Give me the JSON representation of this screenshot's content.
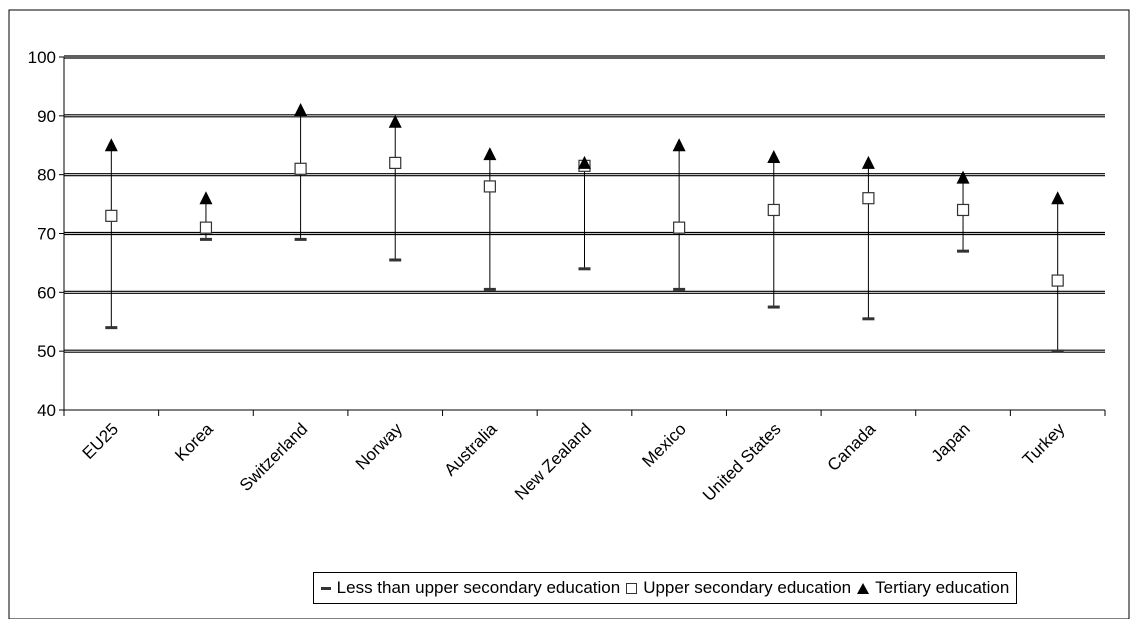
{
  "chart_data": {
    "type": "scatter",
    "categories": [
      "EU25",
      "Korea",
      "Switzerland",
      "Norway",
      "Australia",
      "New Zealand",
      "Mexico",
      "United States",
      "Canada",
      "Japan",
      "Turkey"
    ],
    "series": [
      {
        "name": "Less than upper secondary education",
        "marker": "dash",
        "values": [
          54,
          69,
          69,
          65.5,
          60.5,
          64,
          60.5,
          57.5,
          55.5,
          67,
          50
        ]
      },
      {
        "name": "Upper secondary education",
        "marker": "square",
        "values": [
          73,
          71,
          81,
          82,
          78,
          81.5,
          71,
          74,
          76,
          74,
          62
        ]
      },
      {
        "name": "Tertiary education",
        "marker": "triangle",
        "values": [
          85,
          76,
          91,
          89,
          83.5,
          82,
          85,
          83,
          82,
          79.5,
          76
        ]
      }
    ],
    "yticks": [
      "40",
      "50",
      "60",
      "70",
      "80",
      "90",
      "100"
    ],
    "ylim": [
      40,
      100
    ],
    "gridlines": true,
    "legend_position": "bottom",
    "colors": {
      "line": "#000000",
      "dash": "#333333",
      "square_fill": "#ffffff",
      "triangle": "#000000"
    }
  },
  "legend": [
    {
      "label": "Less than upper secondary education",
      "marker": "dash"
    },
    {
      "label": "Upper secondary education",
      "marker": "square"
    },
    {
      "label": "Tertiary education",
      "marker": "triangle"
    }
  ]
}
